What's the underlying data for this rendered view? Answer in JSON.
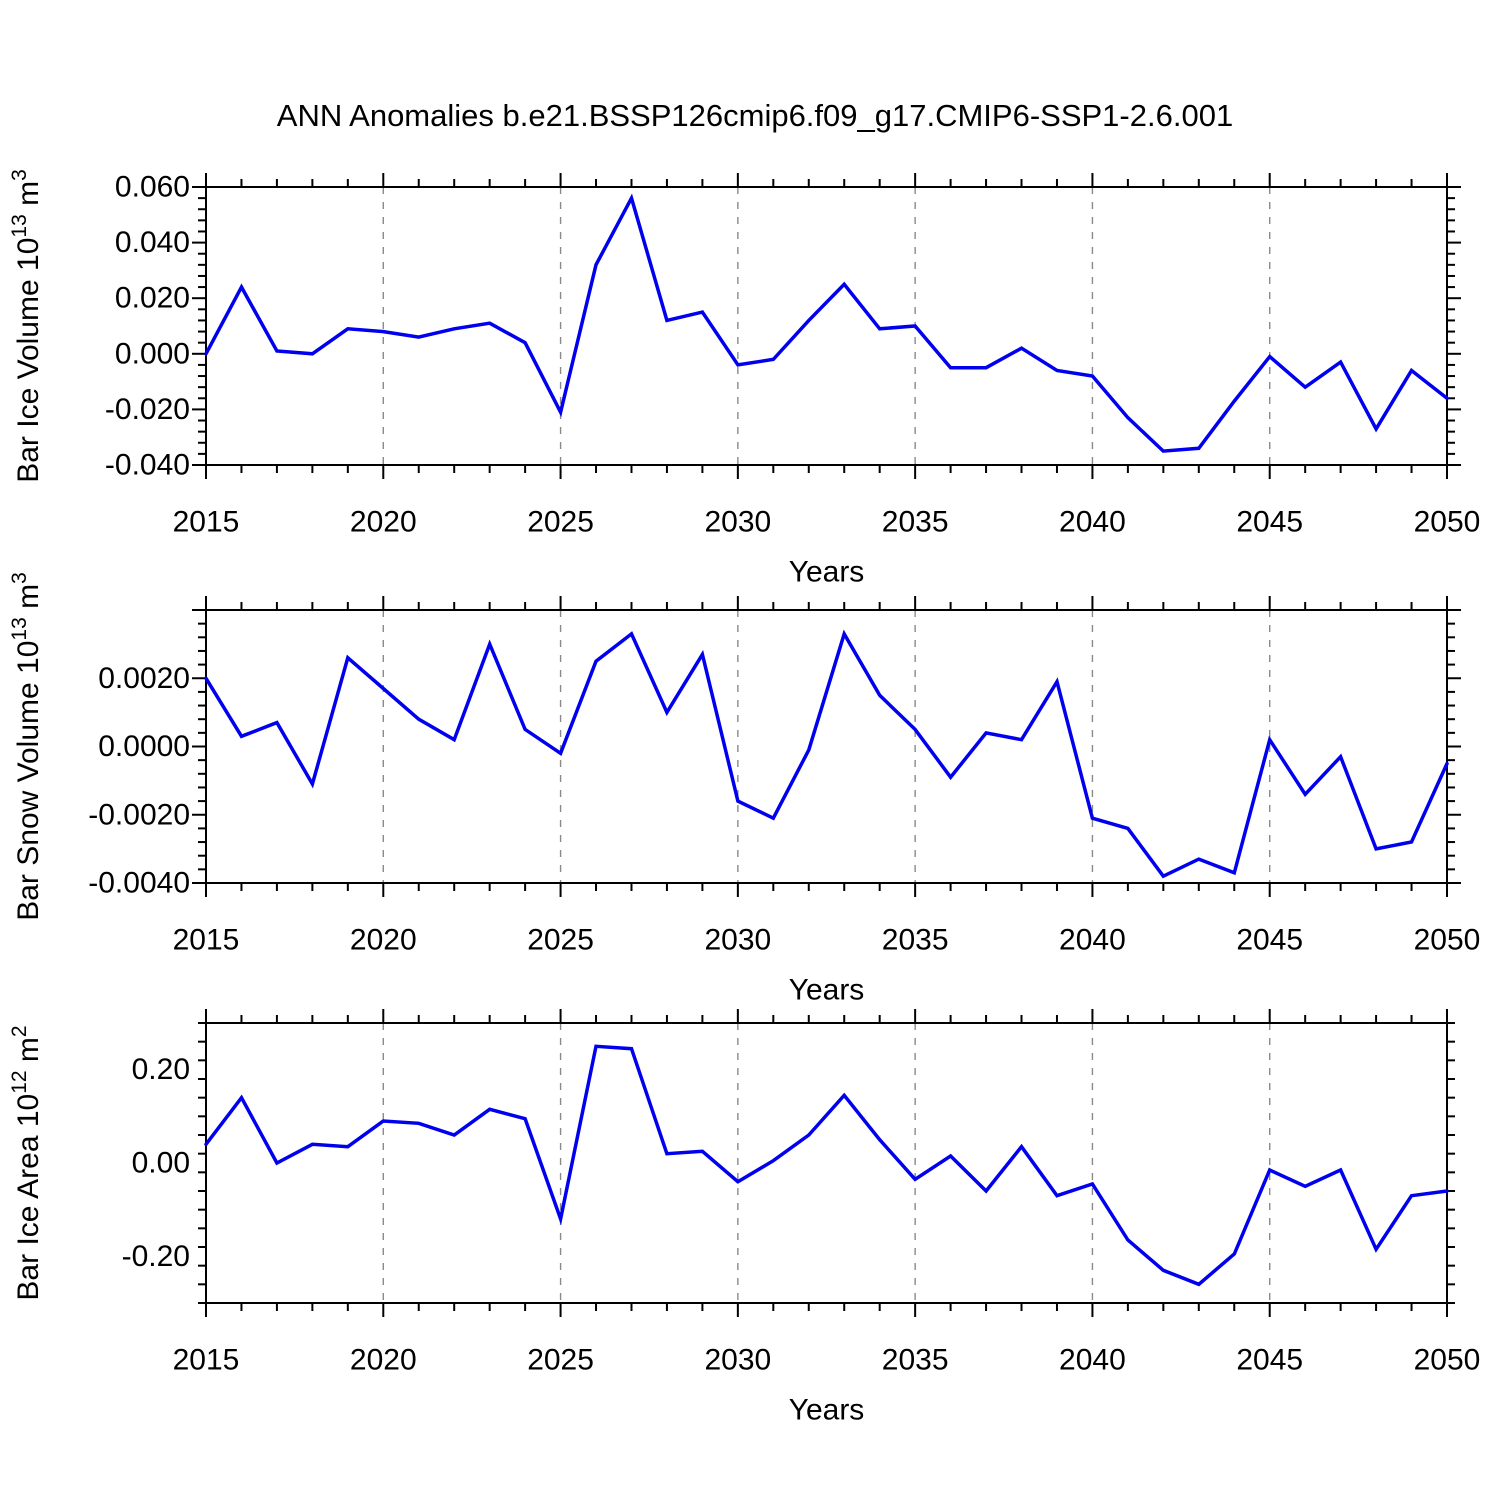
{
  "title": "ANN Anomalies b.e21.BSSP126cmip6.f09_g17.CMIP6-SSP1-2.6.001",
  "chart_data": {
    "type": "line",
    "x_axis_label": "Years",
    "legend_position": "none",
    "grid": "vertical-dashed",
    "line_color": "#0000ee",
    "grid_color": "#8a8a8a",
    "frame_color": "#000000",
    "x": [
      2015,
      2016,
      2017,
      2018,
      2019,
      2020,
      2021,
      2022,
      2023,
      2024,
      2025,
      2026,
      2027,
      2028,
      2029,
      2030,
      2031,
      2032,
      2033,
      2034,
      2035,
      2036,
      2037,
      2038,
      2039,
      2040,
      2041,
      2042,
      2043,
      2044,
      2045,
      2046,
      2047,
      2048,
      2049,
      2050
    ],
    "x_ticks": [
      {
        "label": "2015",
        "value": 2015
      },
      {
        "label": "2020",
        "value": 2020
      },
      {
        "label": "2025",
        "value": 2025
      },
      {
        "label": "2030",
        "value": 2030
      },
      {
        "label": "2035",
        "value": 2035
      },
      {
        "label": "2040",
        "value": 2040
      },
      {
        "label": "2045",
        "value": 2045
      },
      {
        "label": "2050",
        "value": 2050
      }
    ],
    "grid_years": [
      2020,
      2025,
      2030,
      2035,
      2040,
      2045
    ],
    "panels": [
      {
        "id": "ice-volume",
        "ylabel_text": "Bar Ice Volume 10^13 m^3",
        "ylabel_parts": [
          {
            "t": "Bar Ice Volume 10"
          },
          {
            "t": "13",
            "sup": true
          },
          {
            "t": " m"
          },
          {
            "t": "3",
            "sup": true
          }
        ],
        "ylim": [
          -0.04,
          0.06
        ],
        "ymajor_step": 0.02,
        "yminor_step": 0.004,
        "yticks": [
          {
            "label": "0.060",
            "value": 0.06
          },
          {
            "label": "0.040",
            "value": 0.04
          },
          {
            "label": "0.020",
            "value": 0.02
          },
          {
            "label": "0.000",
            "value": 0.0
          },
          {
            "label": "-0.020",
            "value": -0.02
          },
          {
            "label": "-0.040",
            "value": -0.04
          }
        ],
        "values": [
          0.0,
          0.024,
          0.001,
          0.0,
          0.009,
          0.008,
          0.006,
          0.009,
          0.011,
          0.004,
          -0.021,
          0.032,
          0.056,
          0.012,
          0.015,
          -0.004,
          -0.002,
          0.012,
          0.025,
          0.009,
          0.01,
          -0.005,
          -0.005,
          0.002,
          -0.006,
          -0.008,
          -0.023,
          -0.035,
          -0.034,
          -0.017,
          -0.001,
          -0.012,
          -0.003,
          -0.027,
          -0.006,
          -0.016
        ]
      },
      {
        "id": "snow-volume",
        "ylabel_text": "Bar Snow Volume 10^13 m^3",
        "ylabel_parts": [
          {
            "t": "Bar Snow Volume 10"
          },
          {
            "t": "13",
            "sup": true
          },
          {
            "t": " m"
          },
          {
            "t": "3",
            "sup": true
          }
        ],
        "ylim": [
          -0.004,
          0.004
        ],
        "ymajor_step": 0.002,
        "yminor_step": 0.0004,
        "yticks": [
          {
            "label": "0.0020",
            "value": 0.002
          },
          {
            "label": "0.0000",
            "value": 0.0
          },
          {
            "label": "-0.0020",
            "value": -0.002
          },
          {
            "label": "-0.0040",
            "value": -0.004
          }
        ],
        "values": [
          0.002,
          0.0003,
          0.0007,
          -0.0011,
          0.0026,
          0.0017,
          0.0008,
          0.0002,
          0.003,
          0.0005,
          -0.0002,
          0.0025,
          0.0033,
          0.001,
          0.0027,
          -0.0016,
          -0.0021,
          -0.0001,
          0.0033,
          0.0015,
          0.0005,
          -0.0009,
          0.0004,
          0.0002,
          0.0019,
          -0.0021,
          -0.0024,
          -0.0038,
          -0.0033,
          -0.0037,
          0.0002,
          -0.0014,
          -0.0003,
          -0.003,
          -0.0028,
          -0.0005
        ]
      },
      {
        "id": "ice-area",
        "ylabel_text": "Bar Ice Area 10^12 m^2",
        "ylabel_parts": [
          {
            "t": "Bar Ice Area 10"
          },
          {
            "t": "12",
            "sup": true
          },
          {
            "t": " m"
          },
          {
            "t": "2",
            "sup": true
          }
        ],
        "ylim": [
          -0.3,
          0.3
        ],
        "ymajor_step": 0.2,
        "yminor_step": 0.04,
        "yticks": [
          {
            "label": "0.20",
            "value": 0.2
          },
          {
            "label": "0.00",
            "value": 0.0
          },
          {
            "label": "-0.20",
            "value": -0.2
          }
        ],
        "values": [
          0.04,
          0.14,
          0.0,
          0.04,
          0.035,
          0.09,
          0.085,
          0.06,
          0.115,
          0.095,
          -0.12,
          0.25,
          0.245,
          0.02,
          0.025,
          -0.04,
          0.005,
          0.06,
          0.145,
          0.05,
          -0.035,
          0.015,
          -0.06,
          0.035,
          -0.07,
          -0.045,
          -0.165,
          -0.23,
          -0.26,
          -0.195,
          -0.015,
          -0.05,
          -0.015,
          -0.185,
          -0.07,
          -0.06
        ]
      }
    ]
  }
}
